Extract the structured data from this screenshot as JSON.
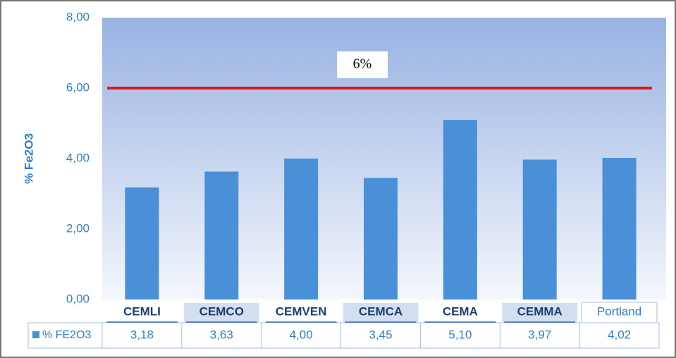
{
  "chart_data": {
    "type": "bar",
    "y_label": "% Fe2O3",
    "categories": [
      "CEMLI",
      "CEMCO",
      "CEMVEN",
      "CEMCA",
      "CEMA",
      "CEMMA",
      "Portland"
    ],
    "series": [
      {
        "name": "% FE2O3",
        "color": "#4a90d9",
        "values": [
          3.18,
          3.63,
          4.0,
          3.45,
          5.1,
          3.97,
          4.02
        ],
        "value_labels": [
          "3,18",
          "3,63",
          "4,00",
          "3,45",
          "5,10",
          "3,97",
          "4,02"
        ]
      }
    ],
    "ylim": [
      0,
      8
    ],
    "yticks": [
      {
        "value": 0,
        "label": "0,00"
      },
      {
        "value": 2,
        "label": "2,00"
      },
      {
        "value": 4,
        "label": "4,00"
      },
      {
        "value": 6,
        "label": "6,00"
      },
      {
        "value": 8,
        "label": "8,00"
      }
    ],
    "reference_line": {
      "value": 6,
      "label": "6%",
      "color": "#e8141c"
    }
  }
}
